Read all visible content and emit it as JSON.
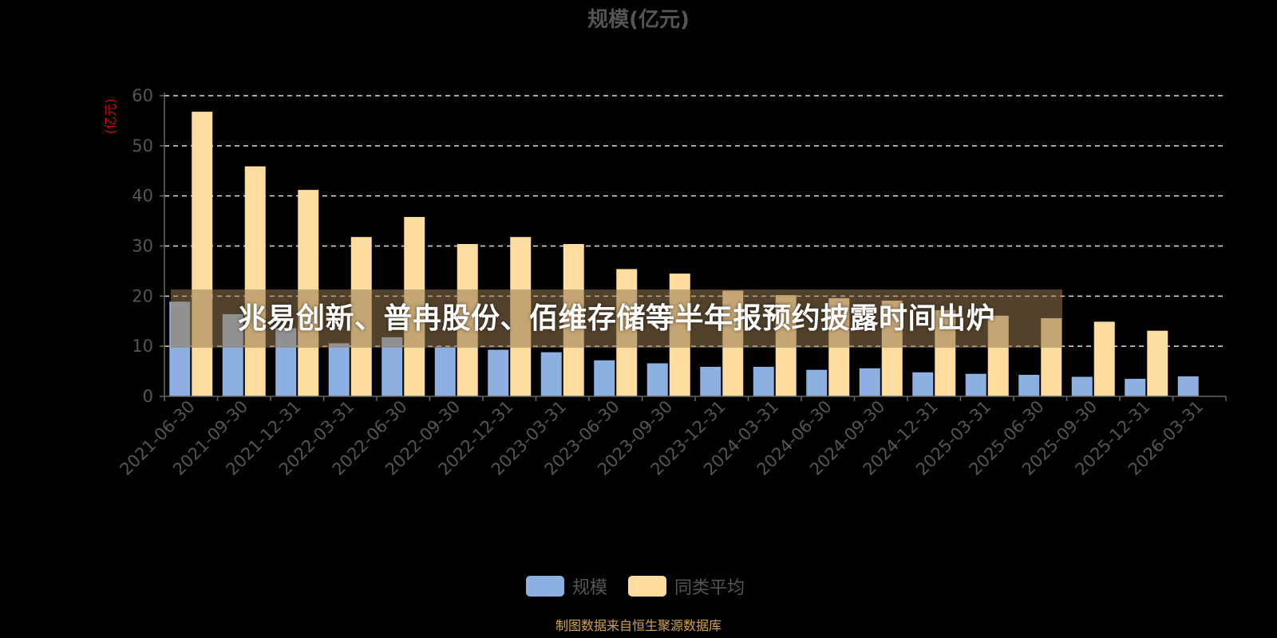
{
  "headline": "兆易创新、普冉股份、佰维存储等半年报预约披露时间出炉",
  "source_note": "制图数据来自恒生聚源数据库",
  "colors": {
    "series_scale": "#8eb0e0",
    "series_avg": "#fddca0",
    "grid": "#dddddd",
    "axis": "#666666",
    "overlay": "#967850"
  },
  "chart_data": {
    "type": "bar",
    "title": "规模(亿元)",
    "ylabel": "(亿元)",
    "xlabel": "",
    "ylim": [
      0,
      60
    ],
    "yticks": [
      0,
      10,
      20,
      30,
      40,
      50,
      60
    ],
    "grid": "dashed horizontal",
    "legend_position": "bottom",
    "categories": [
      "2021-06-30",
      "2021-09-30",
      "2021-12-31",
      "2022-03-31",
      "2022-06-30",
      "2022-09-30",
      "2022-12-31",
      "2023-03-31",
      "2023-06-30",
      "2023-09-30",
      "2023-12-31",
      "2024-03-31",
      "2024-06-30",
      "2024-09-30",
      "2024-12-31",
      "2025-03-31",
      "2025-06-30",
      "2025-09-30",
      "2025-12-31",
      "2026-03-31"
    ],
    "series": [
      {
        "name": "规模",
        "values": [
          18.9,
          16.4,
          13.6,
          10.6,
          11.8,
          9.8,
          9.3,
          8.8,
          7.2,
          6.6,
          5.9,
          5.9,
          5.3,
          5.6,
          4.8,
          4.5,
          4.3,
          3.9,
          3.5,
          4.0
        ]
      },
      {
        "name": "同类平均",
        "values": [
          56.8,
          45.9,
          41.2,
          31.8,
          35.8,
          30.4,
          31.8,
          30.4,
          25.4,
          24.5,
          21.1,
          20.2,
          19.6,
          19.1,
          17.2,
          16.1,
          15.6,
          14.9,
          13.1,
          null
        ]
      }
    ]
  }
}
